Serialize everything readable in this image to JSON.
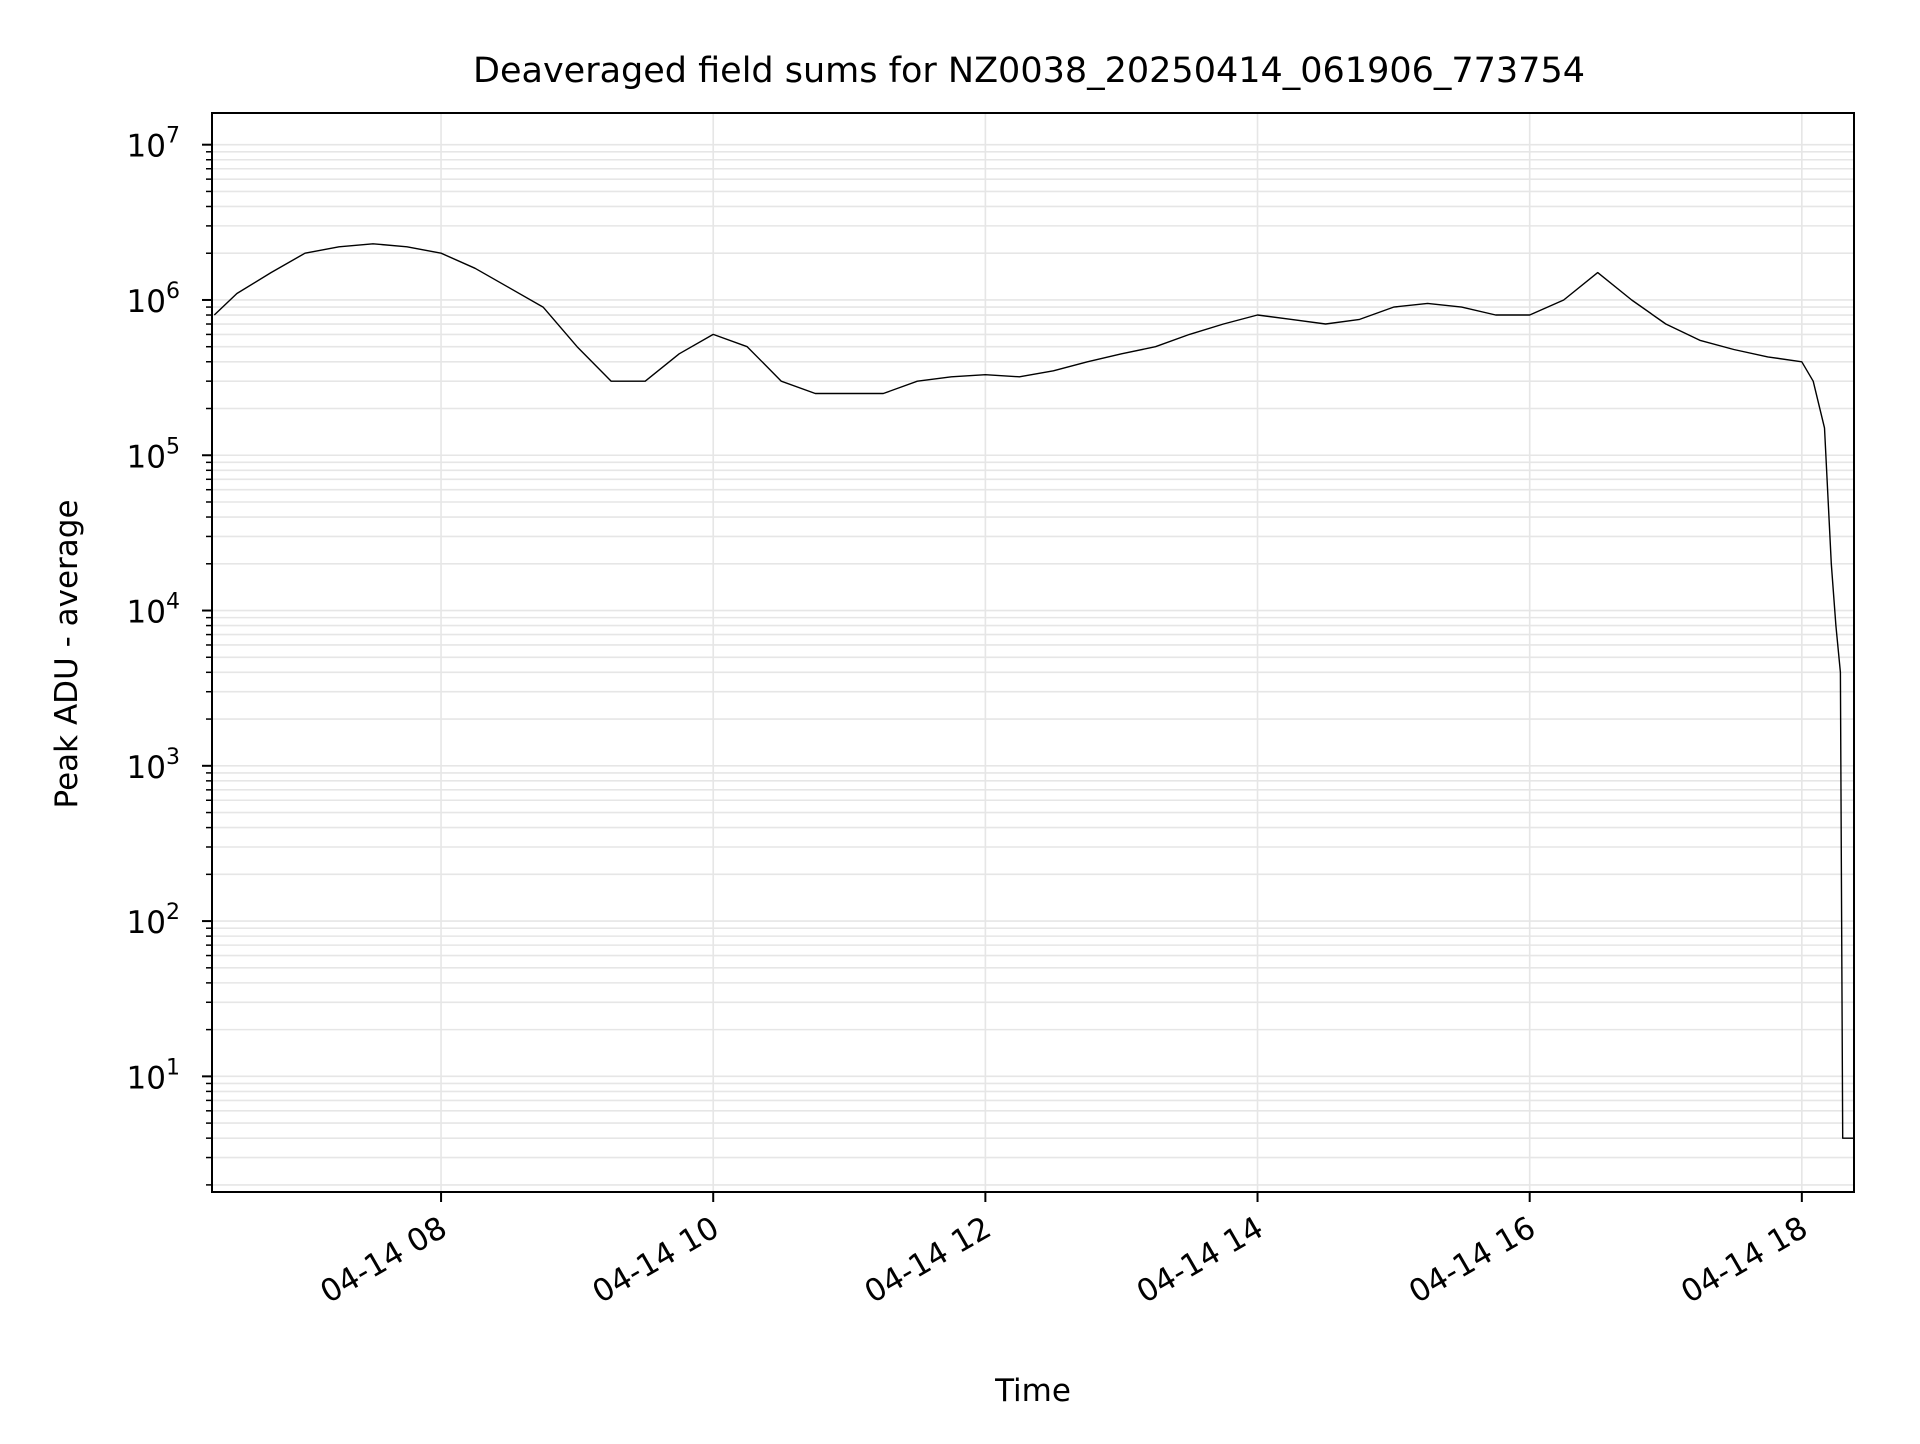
{
  "chart_data": {
    "type": "line",
    "title": "Deaveraged field sums for NZ0038_20250414_061906_773754",
    "xlabel": "Time",
    "ylabel": "Peak ADU - average",
    "x_scale": "time",
    "y_scale": "log",
    "xlim": [
      "2025-04-14T06:19",
      "2025-04-14T18:23"
    ],
    "ylim": [
      1.8,
      16000000
    ],
    "x_ticks": [
      {
        "label": "04-14 08",
        "t": "2025-04-14T08:00"
      },
      {
        "label": "04-14 10",
        "t": "2025-04-14T10:00"
      },
      {
        "label": "04-14 12",
        "t": "2025-04-14T12:00"
      },
      {
        "label": "04-14 14",
        "t": "2025-04-14T14:00"
      },
      {
        "label": "04-14 16",
        "t": "2025-04-14T16:00"
      },
      {
        "label": "04-14 18",
        "t": "2025-04-14T18:00"
      }
    ],
    "y_ticks": [
      {
        "base": "10",
        "exp": "1",
        "value": 10
      },
      {
        "base": "10",
        "exp": "2",
        "value": 100
      },
      {
        "base": "10",
        "exp": "3",
        "value": 1000
      },
      {
        "base": "10",
        "exp": "4",
        "value": 10000
      },
      {
        "base": "10",
        "exp": "5",
        "value": 100000
      },
      {
        "base": "10",
        "exp": "6",
        "value": 1000000
      },
      {
        "base": "10",
        "exp": "7",
        "value": 10000000
      }
    ],
    "grid": true,
    "line_color": "#000000",
    "grid_color": "#e6e6e6",
    "series": [
      {
        "x": [
          "2025-04-14T06:20",
          "2025-04-14T06:30",
          "2025-04-14T06:45",
          "2025-04-14T07:00",
          "2025-04-14T07:15",
          "2025-04-14T07:30",
          "2025-04-14T07:45",
          "2025-04-14T08:00",
          "2025-04-14T08:15",
          "2025-04-14T08:30",
          "2025-04-14T08:45",
          "2025-04-14T09:00",
          "2025-04-14T09:15",
          "2025-04-14T09:30",
          "2025-04-14T09:45",
          "2025-04-14T10:00",
          "2025-04-14T10:15",
          "2025-04-14T10:30",
          "2025-04-14T10:45",
          "2025-04-14T11:00",
          "2025-04-14T11:15",
          "2025-04-14T11:30",
          "2025-04-14T11:45",
          "2025-04-14T12:00",
          "2025-04-14T12:15",
          "2025-04-14T12:30",
          "2025-04-14T12:45",
          "2025-04-14T13:00",
          "2025-04-14T13:15",
          "2025-04-14T13:30",
          "2025-04-14T13:45",
          "2025-04-14T14:00",
          "2025-04-14T14:15",
          "2025-04-14T14:30",
          "2025-04-14T14:45",
          "2025-04-14T15:00",
          "2025-04-14T15:15",
          "2025-04-14T15:30",
          "2025-04-14T15:45",
          "2025-04-14T16:00",
          "2025-04-14T16:15",
          "2025-04-14T16:30",
          "2025-04-14T16:45",
          "2025-04-14T17:00",
          "2025-04-14T17:15",
          "2025-04-14T17:30",
          "2025-04-14T17:45",
          "2025-04-14T18:00",
          "2025-04-14T18:05",
          "2025-04-14T18:10",
          "2025-04-14T18:13",
          "2025-04-14T18:15",
          "2025-04-14T18:17",
          "2025-04-14T18:18",
          "2025-04-14T18:23"
        ],
        "y": [
          800000,
          1100000,
          1500000,
          2000000,
          2200000,
          2300000,
          2200000,
          2000000,
          1600000,
          1200000,
          900000,
          500000,
          300000,
          300000,
          450000,
          600000,
          500000,
          300000,
          250000,
          250000,
          250000,
          300000,
          320000,
          330000,
          320000,
          350000,
          400000,
          450000,
          500000,
          600000,
          700000,
          800000,
          750000,
          700000,
          750000,
          900000,
          950000,
          900000,
          800000,
          800000,
          1000000,
          1500000,
          1000000,
          700000,
          550000,
          480000,
          430000,
          400000,
          300000,
          150000,
          20000,
          8000,
          4000,
          4,
          4
        ]
      }
    ]
  }
}
